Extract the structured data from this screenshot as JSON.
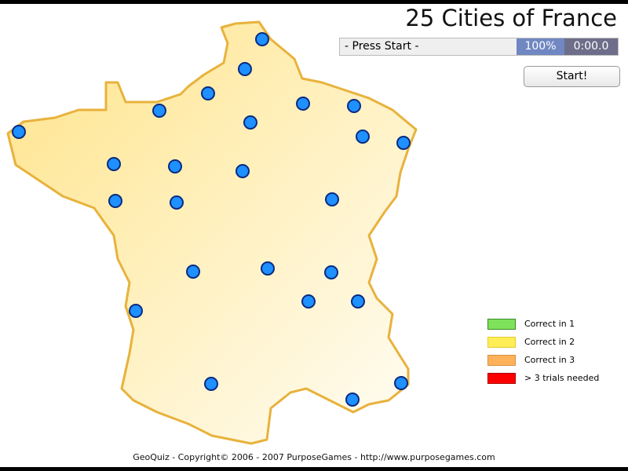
{
  "title": "25 Cities of France",
  "status": {
    "message": "- Press Start -",
    "percent": "100%",
    "timer": "0:00.0"
  },
  "start_label": "Start!",
  "legend": [
    {
      "label": "Correct in 1",
      "color": "#7ee25a"
    },
    {
      "label": "Correct in 2",
      "color": "#ffee55"
    },
    {
      "label": "Correct in 3",
      "color": "#ffb25a"
    },
    {
      "label": "> 3 trials needed",
      "color": "#ff0000"
    }
  ],
  "footer": "GeoQuiz - Copyright© 2006 - 2007 PurposeGames - http://www.purposegames.com",
  "colors": {
    "city": "#1e90ff",
    "outline": "#e8b23c",
    "land": "#fff0b8"
  },
  "cities_count": 25
}
